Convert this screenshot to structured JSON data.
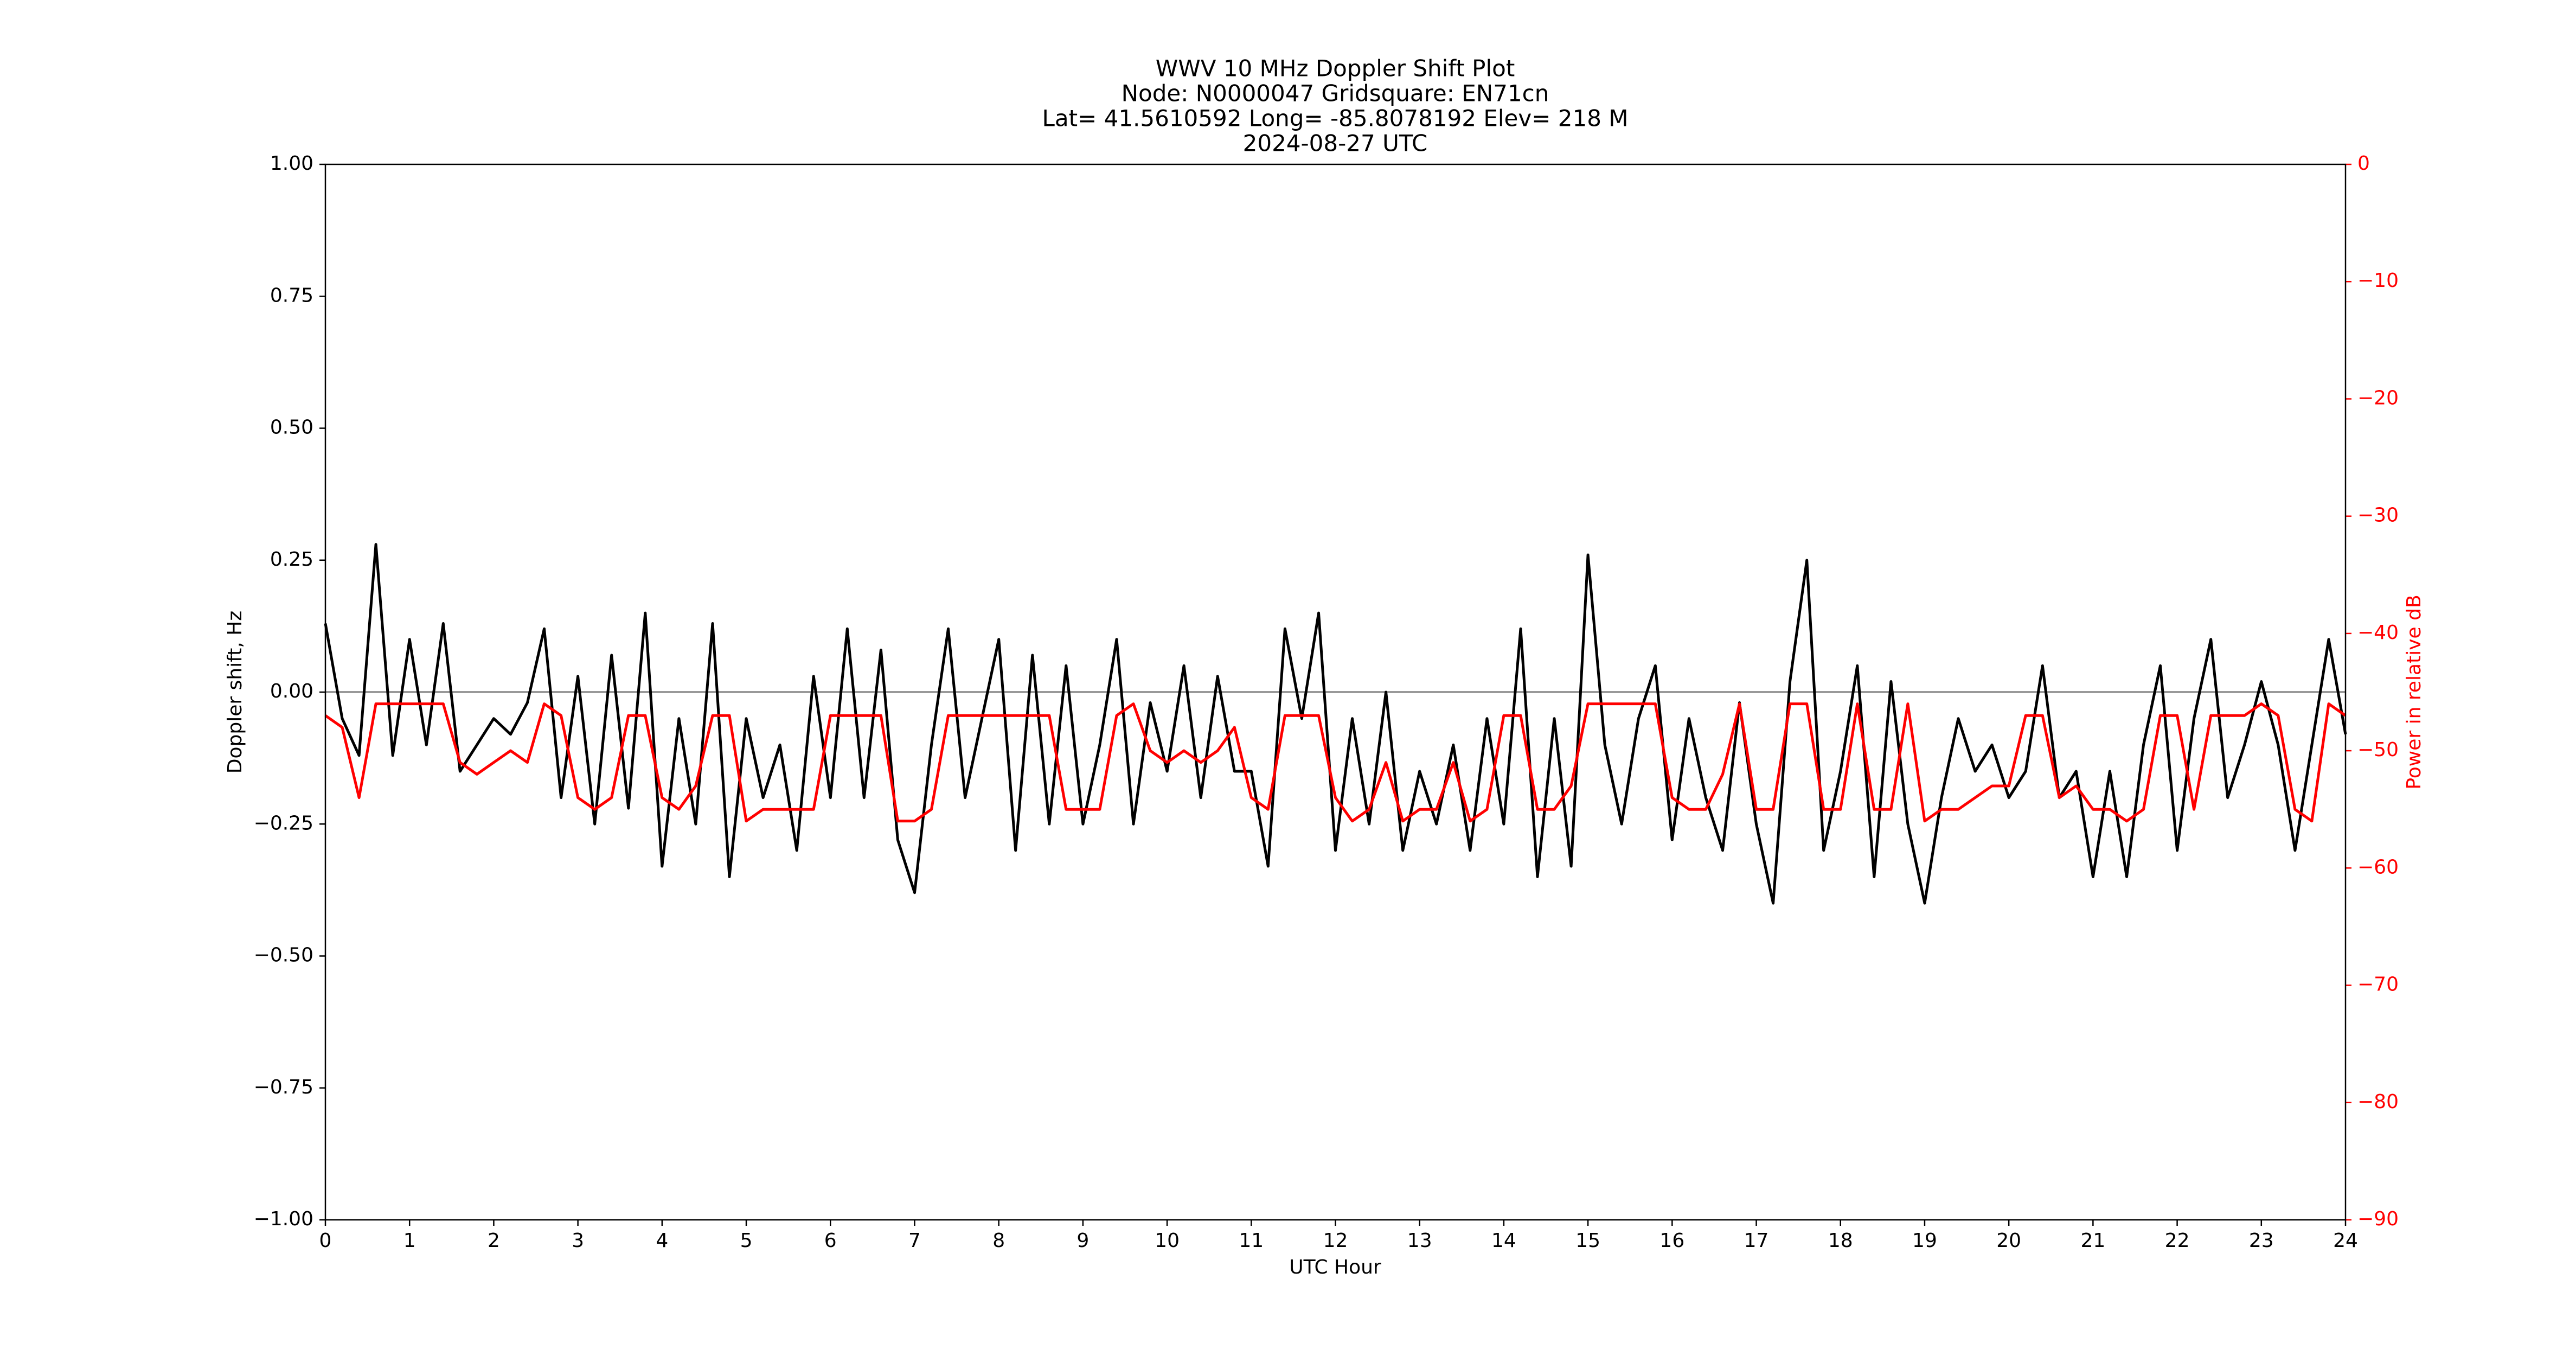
{
  "chart_data": {
    "type": "line",
    "title": [
      "WWV 10 MHz Doppler Shift Plot",
      "Node:  N0000047     Gridsquare:  EN71cn",
      "Lat= 41.5610592    Long= -85.8078192    Elev= 218 M",
      "2024-08-27  UTC"
    ],
    "xlabel": "UTC Hour",
    "ylabel": "Doppler shift, Hz",
    "y2label": "Power in relative dB",
    "xlim": [
      0,
      24
    ],
    "xticks": [
      0,
      1,
      2,
      3,
      4,
      5,
      6,
      7,
      8,
      9,
      10,
      11,
      12,
      13,
      14,
      15,
      16,
      17,
      18,
      19,
      20,
      21,
      22,
      23,
      24
    ],
    "ylim": [
      -1,
      1
    ],
    "yticks": [
      {
        "value": -1,
        "label": "−1.00"
      },
      {
        "value": -0.75,
        "label": "−0.75"
      },
      {
        "value": -0.5,
        "label": "−0.50"
      },
      {
        "value": -0.25,
        "label": "−0.25"
      },
      {
        "value": 0,
        "label": "0.00"
      },
      {
        "value": 0.25,
        "label": "0.25"
      },
      {
        "value": 0.5,
        "label": "0.50"
      },
      {
        "value": 0.75,
        "label": "0.75"
      },
      {
        "value": 1,
        "label": "1.00"
      }
    ],
    "y2lim": [
      -90,
      0
    ],
    "y2ticks": [
      {
        "value": -90,
        "label": "−90"
      },
      {
        "value": -80,
        "label": "−80"
      },
      {
        "value": -70,
        "label": "−70"
      },
      {
        "value": -60,
        "label": "−60"
      },
      {
        "value": -50,
        "label": "−50"
      },
      {
        "value": -40,
        "label": "−40"
      },
      {
        "value": -30,
        "label": "−30"
      },
      {
        "value": -20,
        "label": "−20"
      },
      {
        "value": -10,
        "label": "−10"
      },
      0
    ],
    "y2color": "#ff0000",
    "reference_line": {
      "value": 0,
      "color": "#999999"
    },
    "x": [
      0,
      0.2,
      0.4,
      0.6,
      0.8,
      1,
      1.2,
      1.4,
      1.6,
      1.8,
      2,
      2.2,
      2.4,
      2.6,
      2.8,
      3,
      3.2,
      3.4,
      3.6,
      3.8,
      4,
      4.2,
      4.4,
      4.6,
      4.8,
      5,
      5.2,
      5.4,
      5.6,
      5.8,
      6,
      6.2,
      6.4,
      6.6,
      6.8,
      7,
      7.2,
      7.4,
      7.6,
      7.8,
      8,
      8.2,
      8.4,
      8.6,
      8.8,
      9,
      9.2,
      9.4,
      9.6,
      9.8,
      10,
      10.2,
      10.4,
      10.6,
      10.8,
      11,
      11.2,
      11.4,
      11.6,
      11.8,
      12,
      12.2,
      12.4,
      12.6,
      12.8,
      13,
      13.2,
      13.4,
      13.6,
      13.8,
      14,
      14.2,
      14.4,
      14.6,
      14.8,
      15,
      15.2,
      15.4,
      15.6,
      15.8,
      16,
      16.2,
      16.4,
      16.6,
      16.8,
      17,
      17.2,
      17.4,
      17.6,
      17.8,
      18,
      18.2,
      18.4,
      18.6,
      18.8,
      19,
      19.2,
      19.4,
      19.6,
      19.8,
      20,
      20.2,
      20.4,
      20.6,
      20.8,
      21,
      21.2,
      21.4,
      21.6,
      21.8,
      22,
      22.2,
      22.4,
      22.6,
      22.8,
      23,
      23.2,
      23.4,
      23.6,
      23.8,
      24
    ],
    "series": [
      {
        "color": "#000000",
        "values": [
          0.13,
          -0.05,
          -0.12,
          0.28,
          -0.12,
          0.1,
          -0.1,
          0.13,
          -0.15,
          -0.1,
          -0.05,
          -0.08,
          -0.02,
          0.12,
          -0.2,
          0.03,
          -0.25,
          0.07,
          -0.22,
          0.15,
          -0.33,
          -0.05,
          -0.25,
          0.13,
          -0.35,
          -0.05,
          -0.2,
          -0.1,
          -0.3,
          0.03,
          -0.2,
          0.12,
          -0.2,
          0.08,
          -0.28,
          -0.38,
          -0.1,
          0.12,
          -0.2,
          -0.05,
          0.1,
          -0.3,
          0.07,
          -0.25,
          0.05,
          -0.25,
          -0.1,
          0.1,
          -0.25,
          -0.02,
          -0.15,
          0.05,
          -0.2,
          0.03,
          -0.15,
          -0.15,
          -0.33,
          0.12,
          -0.05,
          0.15,
          -0.3,
          -0.05,
          -0.25,
          0.0,
          -0.3,
          -0.15,
          -0.25,
          -0.1,
          -0.3,
          -0.05,
          -0.25,
          0.12,
          -0.35,
          -0.05,
          -0.33,
          0.26,
          -0.1,
          -0.25,
          -0.05,
          0.05,
          -0.28,
          -0.05,
          -0.2,
          -0.3,
          -0.02,
          -0.25,
          -0.4,
          0.02,
          0.25,
          -0.3,
          -0.15,
          0.05,
          -0.35,
          0.02,
          -0.25,
          -0.4,
          -0.2,
          -0.05,
          -0.15,
          -0.1,
          -0.2,
          -0.15,
          0.05,
          -0.2,
          -0.15,
          -0.35,
          -0.15,
          -0.35,
          -0.1,
          0.05,
          -0.3,
          -0.05,
          0.1,
          -0.2,
          -0.1,
          0.02,
          -0.1,
          -0.3,
          -0.1,
          0.1,
          -0.08
        ]
      },
      {
        "color": "#ff0000",
        "axis": "y2",
        "values": [
          -47,
          -48,
          -54,
          -46,
          -46,
          -46,
          -46,
          -46,
          -51,
          -52,
          -51,
          -50,
          -51,
          -46,
          -47,
          -54,
          -55,
          -54,
          -47,
          -47,
          -54,
          -55,
          -53,
          -47,
          -47,
          -56,
          -55,
          -55,
          -55,
          -55,
          -47,
          -47,
          -47,
          -47,
          -56,
          -56,
          -55,
          -47,
          -47,
          -47,
          -47,
          -47,
          -47,
          -47,
          -55,
          -55,
          -55,
          -47,
          -46,
          -50,
          -51,
          -50,
          -51,
          -50,
          -48,
          -54,
          -55,
          -47,
          -47,
          -47,
          -54,
          -56,
          -55,
          -51,
          -56,
          -55,
          -55,
          -51,
          -56,
          -55,
          -47,
          -47,
          -55,
          -55,
          -53,
          -46,
          -46,
          -46,
          -46,
          -46,
          -54,
          -55,
          -55,
          -52,
          -46,
          -55,
          -55,
          -46,
          -46,
          -55,
          -55,
          -46,
          -55,
          -55,
          -46,
          -56,
          -55,
          -55,
          -54,
          -53,
          -53,
          -47,
          -47,
          -54,
          -53,
          -55,
          -55,
          -56,
          -55,
          -47,
          -47,
          -55,
          -47,
          -47,
          -47,
          -46,
          -47,
          -55,
          -56,
          -46,
          -47
        ]
      }
    ]
  }
}
